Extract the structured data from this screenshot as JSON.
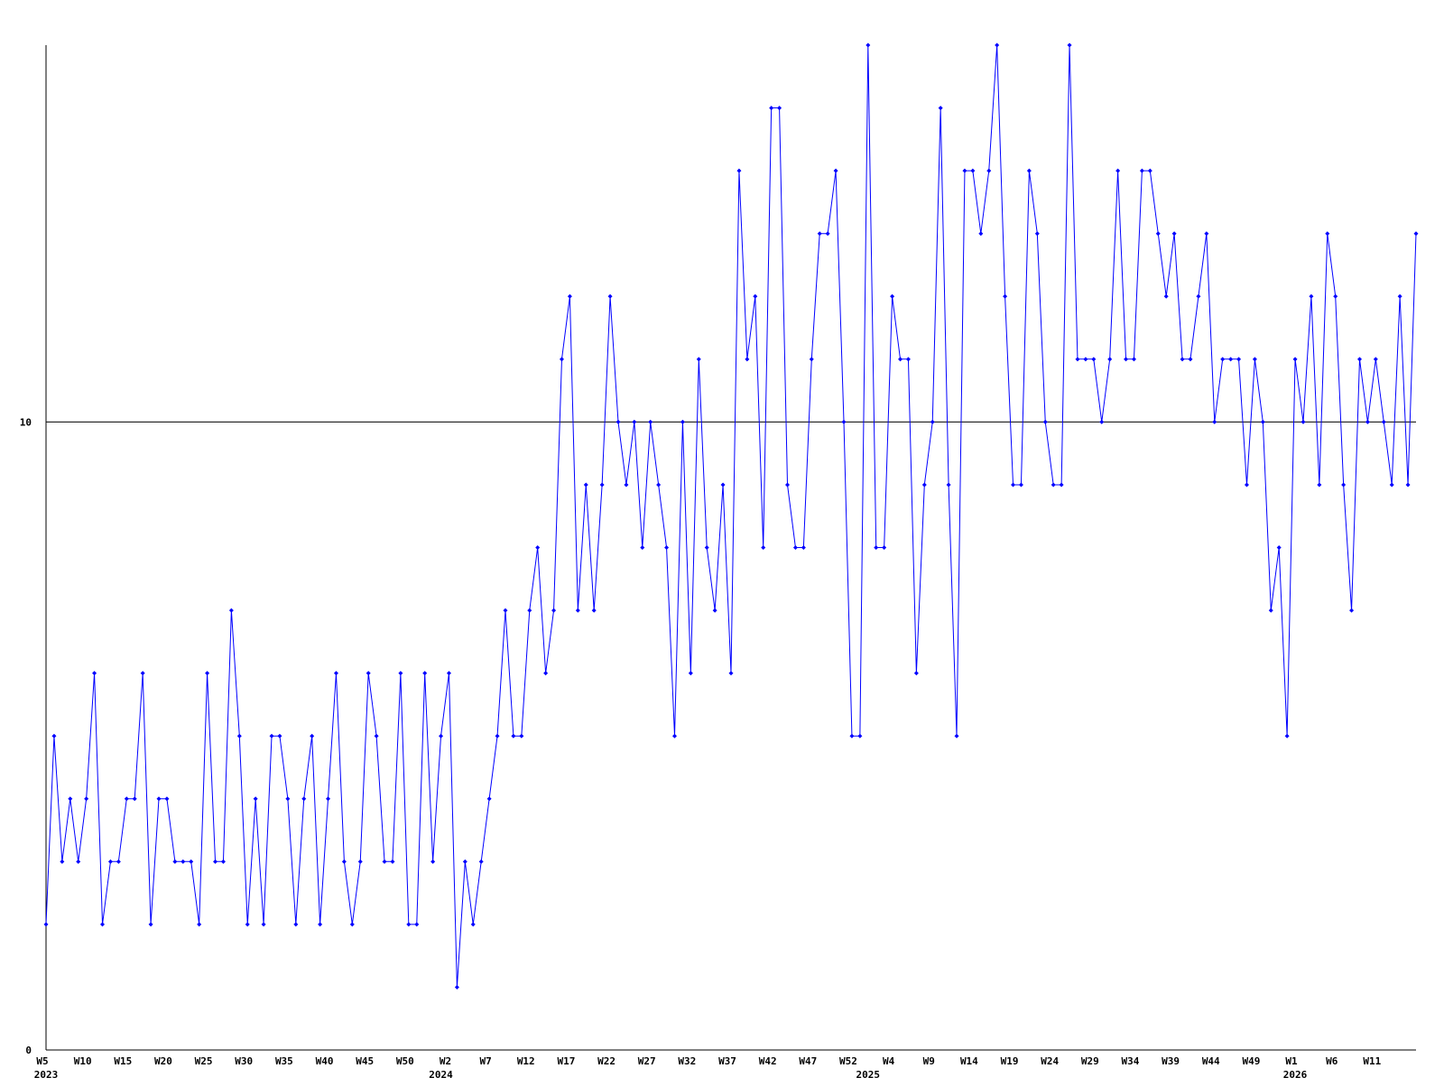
{
  "chart_data": {
    "type": "line",
    "color": "#0000ff",
    "grid": true,
    "ylim": [
      0,
      16
    ],
    "yticks": [
      0,
      10
    ],
    "categories": [
      "W5",
      null,
      null,
      null,
      null,
      "W10",
      null,
      null,
      null,
      null,
      "W15",
      null,
      null,
      null,
      null,
      "W20",
      null,
      null,
      null,
      null,
      "W25",
      null,
      null,
      null,
      null,
      "W30",
      null,
      null,
      null,
      null,
      "W35",
      null,
      null,
      null,
      null,
      "W40",
      null,
      null,
      null,
      null,
      "W45",
      null,
      null,
      null,
      null,
      "W50",
      null,
      null,
      null,
      null,
      "W2",
      null,
      null,
      null,
      null,
      "W7",
      null,
      null,
      null,
      null,
      "W12",
      null,
      null,
      null,
      null,
      "W17",
      null,
      null,
      null,
      null,
      "W22",
      null,
      null,
      null,
      null,
      "W27",
      null,
      null,
      null,
      null,
      "W32",
      null,
      null,
      null,
      null,
      "W37",
      null,
      null,
      null,
      null,
      "W42",
      null,
      null,
      null,
      null,
      "W47",
      null,
      null,
      null,
      null,
      "W52",
      null,
      null,
      null,
      null,
      "W4",
      null,
      null,
      null,
      null,
      "W9",
      null,
      null,
      null,
      null,
      "W14",
      null,
      null,
      null,
      null,
      "W19",
      null,
      null,
      null,
      null,
      "W24",
      null,
      null,
      null,
      null,
      "W29",
      null,
      null,
      null,
      null,
      "W34",
      null,
      null,
      null,
      null,
      "W39",
      null,
      null,
      null,
      null,
      "W44",
      null,
      null,
      null,
      null,
      "W49",
      null,
      null,
      null,
      null,
      "W1",
      null,
      null,
      null,
      null,
      "W6",
      null,
      null,
      null,
      null,
      "W11",
      null,
      null,
      null,
      null,
      null
    ],
    "years": [
      "2023",
      null,
      null,
      null,
      null,
      null,
      null,
      null,
      null,
      null,
      null,
      null,
      null,
      null,
      null,
      null,
      null,
      null,
      null,
      null,
      null,
      null,
      null,
      null,
      null,
      null,
      null,
      null,
      null,
      null,
      null,
      null,
      null,
      null,
      null,
      null,
      null,
      null,
      null,
      null,
      null,
      null,
      null,
      null,
      null,
      null,
      null,
      null,
      null,
      "2024",
      null,
      null,
      null,
      null,
      null,
      null,
      null,
      null,
      null,
      null,
      null,
      null,
      null,
      null,
      null,
      null,
      null,
      null,
      null,
      null,
      null,
      null,
      null,
      null,
      null,
      null,
      null,
      null,
      null,
      null,
      null,
      null,
      null,
      null,
      null,
      null,
      null,
      null,
      null,
      null,
      null,
      null,
      null,
      null,
      null,
      null,
      null,
      null,
      null,
      null,
      null,
      null,
      "2025",
      null,
      null,
      null,
      null,
      null,
      null,
      null,
      null,
      null,
      null,
      null,
      null,
      null,
      null,
      null,
      null,
      null,
      null,
      null,
      null,
      null,
      null,
      null,
      null,
      null,
      null,
      null,
      null,
      null,
      null,
      null,
      null,
      null,
      null,
      null,
      null,
      null,
      null,
      null,
      null,
      null,
      null,
      null,
      null,
      null,
      null,
      null,
      null,
      null,
      null,
      null,
      null,
      "2026",
      null,
      null,
      null,
      null,
      null,
      null,
      null,
      null,
      null,
      null,
      null,
      null,
      null,
      null,
      null
    ],
    "values": [
      2,
      5,
      3,
      4,
      3,
      4,
      6,
      2,
      3,
      3,
      4,
      4,
      6,
      2,
      4,
      4,
      3,
      3,
      3,
      2,
      6,
      3,
      3,
      7,
      5,
      2,
      4,
      2,
      5,
      5,
      4,
      2,
      4,
      5,
      2,
      4,
      6,
      3,
      2,
      3,
      6,
      5,
      3,
      3,
      6,
      2,
      2,
      6,
      3,
      5,
      6,
      1,
      3,
      2,
      3,
      4,
      5,
      7,
      5,
      5,
      7,
      8,
      6,
      7,
      11,
      12,
      7,
      9,
      7,
      9,
      12,
      10,
      9,
      10,
      8,
      10,
      9,
      8,
      5,
      10,
      6,
      11,
      8,
      7,
      9,
      6,
      14,
      11,
      12,
      8,
      15,
      15,
      9,
      8,
      8,
      11,
      13,
      13,
      14,
      10,
      5,
      5,
      16,
      8,
      8,
      12,
      11,
      11,
      6,
      9,
      10,
      15,
      9,
      5,
      14,
      14,
      13,
      14,
      16,
      12,
      9,
      9,
      14,
      13,
      10,
      9,
      9,
      16,
      11,
      11,
      11,
      10,
      11,
      14,
      11,
      11,
      14,
      14,
      13,
      12,
      13,
      11,
      11,
      12,
      13,
      10,
      11,
      11,
      11,
      9,
      11,
      10,
      7,
      8,
      5,
      11,
      10,
      12,
      9,
      13,
      12,
      9,
      7,
      11,
      10,
      11,
      10,
      9,
      12,
      9,
      13
    ]
  }
}
